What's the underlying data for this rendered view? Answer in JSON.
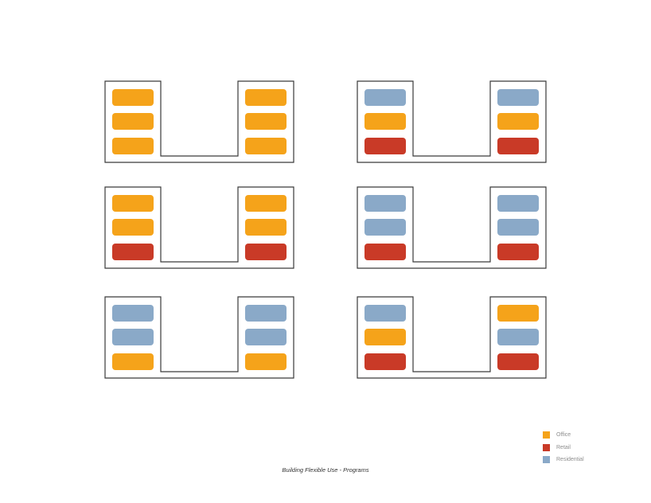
{
  "colors": {
    "office": "#F5A31A",
    "retail": "#C93A27",
    "residential": "#8AA9C8",
    "outline": "#3a3a3a"
  },
  "buildings": [
    {
      "left": [
        "office",
        "office",
        "office"
      ],
      "right": [
        "office",
        "office",
        "office"
      ]
    },
    {
      "left": [
        "residential",
        "office",
        "retail"
      ],
      "right": [
        "residential",
        "office",
        "retail"
      ]
    },
    {
      "left": [
        "office",
        "office",
        "retail"
      ],
      "right": [
        "office",
        "office",
        "retail"
      ]
    },
    {
      "left": [
        "residential",
        "residential",
        "retail"
      ],
      "right": [
        "residential",
        "residential",
        "retail"
      ]
    },
    {
      "left": [
        "residential",
        "residential",
        "office"
      ],
      "right": [
        "residential",
        "residential",
        "office"
      ]
    },
    {
      "left": [
        "residential",
        "office",
        "retail"
      ],
      "right": [
        "office",
        "residential",
        "retail"
      ]
    }
  ],
  "legend": [
    {
      "key": "office",
      "label": "Office"
    },
    {
      "key": "retail",
      "label": "Retail"
    },
    {
      "key": "residential",
      "label": "Residential"
    }
  ],
  "caption": "Building Flexible Use - Programs"
}
